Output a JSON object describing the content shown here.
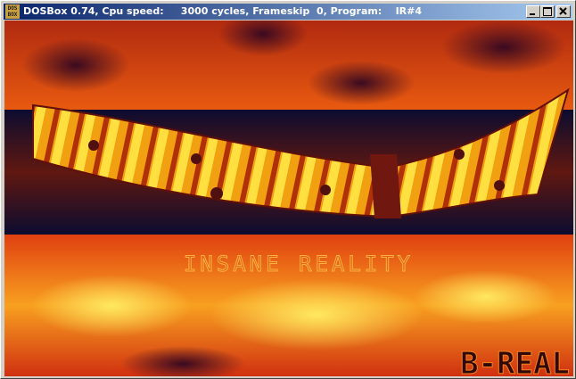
{
  "window": {
    "icon_lines": [
      "DOS",
      "BOX"
    ],
    "title": "DOSBox 0.74, Cpu speed:     3000 cycles, Frameskip  0, Program:    IR#4"
  },
  "screen": {
    "logo": "INSANE REALITY",
    "signature": "B-REAL"
  }
}
